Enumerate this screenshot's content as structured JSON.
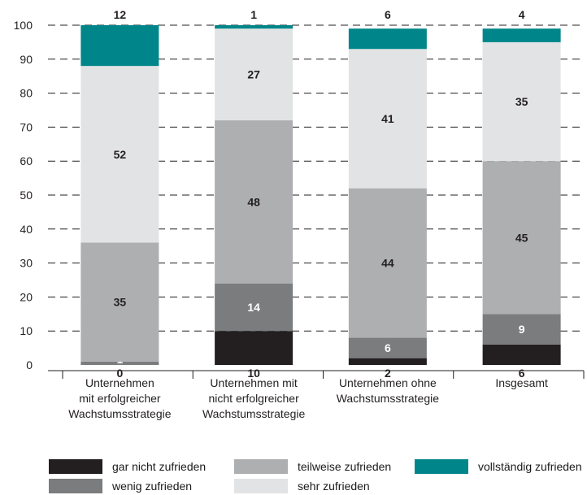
{
  "chart_data": {
    "type": "bar",
    "stacked": true,
    "title": "",
    "xlabel": "",
    "ylabel": "",
    "ylim": [
      0,
      100
    ],
    "yticks": [
      "0",
      "10",
      "20",
      "30",
      "40",
      "50",
      "60",
      "70",
      "80",
      "90",
      "100"
    ],
    "grid": "dashed horizontal",
    "legend_position": "bottom",
    "categories": [
      [
        "Unternehmen",
        "mit erfolgreicher",
        "Wachstumsstrategie"
      ],
      [
        "Unternehmen mit",
        "nicht erfolgreicher",
        "Wachstumsstrategie"
      ],
      [
        "Unternehmen ohne",
        "Wachstumsstrategie"
      ],
      [
        "Insgesamt"
      ]
    ],
    "series": [
      {
        "name": "gar nicht zufrieden",
        "color": "#231f20",
        "values": [
          0,
          10,
          2,
          6
        ],
        "labels": [
          "0",
          "10",
          "2",
          "6"
        ],
        "label_color": "#231f20",
        "label_pos": "below"
      },
      {
        "name": "wenig zufrieden",
        "color": "#7b7c7e",
        "values": [
          1,
          14,
          6,
          9
        ],
        "labels": [
          "1",
          "14",
          "6",
          "9"
        ],
        "label_color": "#ffffff",
        "label_pos": "inside"
      },
      {
        "name": "teilweise zufrieden",
        "color": "#aeafb1",
        "values": [
          35,
          48,
          44,
          45
        ],
        "labels": [
          "35",
          "48",
          "44",
          "45"
        ],
        "label_color": "#231f20",
        "label_pos": "inside"
      },
      {
        "name": "sehr zufrieden",
        "color": "#e2e3e4",
        "values": [
          52,
          27,
          41,
          35
        ],
        "labels": [
          "52",
          "27",
          "41",
          "35"
        ],
        "label_color": "#231f20",
        "label_pos": "inside"
      },
      {
        "name": "vollständig zufrieden",
        "color": "#00868a",
        "values": [
          12,
          1,
          6,
          4
        ],
        "labels": [
          "12",
          "1",
          "6",
          "4"
        ],
        "label_color": "#231f20",
        "label_pos": "above"
      }
    ]
  }
}
